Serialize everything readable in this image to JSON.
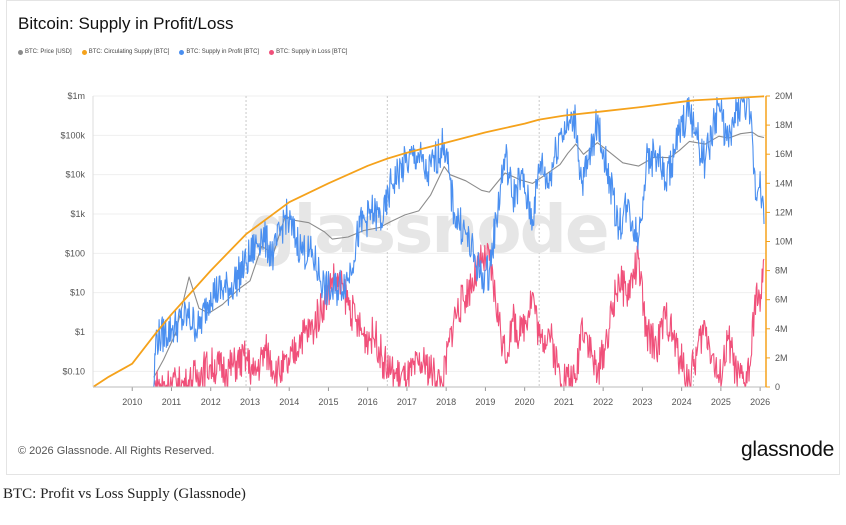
{
  "chart_data": {
    "type": "line",
    "title": "Bitcoin: Supply in Profit/Loss",
    "legend_position": "top-left",
    "grid": true,
    "watermark": "glassnode",
    "xlabel": "",
    "ylabel": "",
    "x_ticks": [
      "2010",
      "2011",
      "2012",
      "2013",
      "2014",
      "2015",
      "2016",
      "2017",
      "2018",
      "2019",
      "2020",
      "2021",
      "2022",
      "2023",
      "2024",
      "2025",
      "2026"
    ],
    "x_range": [
      2009.0,
      2026.15
    ],
    "y_left": {
      "scale": "log",
      "range": [
        0.04,
        1000000
      ],
      "ticks": [
        0.1,
        1,
        10,
        100,
        1000,
        10000,
        100000,
        1000000
      ],
      "tick_labels": [
        "$0.10",
        "$1",
        "$10",
        "$100",
        "$1k",
        "$10k",
        "$100k",
        "$1m"
      ]
    },
    "y_right": {
      "scale": "linear",
      "range": [
        0,
        20000000
      ],
      "ticks": [
        0,
        2000000,
        4000000,
        6000000,
        8000000,
        10000000,
        12000000,
        14000000,
        16000000,
        18000000,
        20000000
      ],
      "tick_labels": [
        "0",
        "2M",
        "4M",
        "6M",
        "8M",
        "10M",
        "12M",
        "14M",
        "16M",
        "18M",
        "20M"
      ]
    },
    "halvings": [
      2012.9,
      2016.5,
      2020.37,
      2024.3
    ],
    "series": [
      {
        "name": "BTC: Price [USD]",
        "color": "#8c8c8c",
        "axis": "left",
        "points": [
          [
            2010.55,
            0.07
          ],
          [
            2010.8,
            0.2
          ],
          [
            2011.1,
            0.9
          ],
          [
            2011.45,
            25
          ],
          [
            2011.7,
            4
          ],
          [
            2011.95,
            3
          ],
          [
            2012.3,
            5
          ],
          [
            2012.7,
            12
          ],
          [
            2013.0,
            20
          ],
          [
            2013.3,
            150
          ],
          [
            2013.6,
            100
          ],
          [
            2013.9,
            900
          ],
          [
            2014.1,
            700
          ],
          [
            2014.5,
            600
          ],
          [
            2014.9,
            350
          ],
          [
            2015.1,
            230
          ],
          [
            2015.5,
            260
          ],
          [
            2015.9,
            380
          ],
          [
            2016.3,
            450
          ],
          [
            2016.6,
            650
          ],
          [
            2016.95,
            950
          ],
          [
            2017.3,
            1200
          ],
          [
            2017.6,
            3000
          ],
          [
            2017.95,
            16000
          ],
          [
            2018.1,
            10000
          ],
          [
            2018.5,
            7000
          ],
          [
            2018.9,
            4000
          ],
          [
            2019.1,
            3600
          ],
          [
            2019.5,
            11000
          ],
          [
            2019.9,
            7300
          ],
          [
            2020.2,
            6000
          ],
          [
            2020.5,
            9500
          ],
          [
            2020.9,
            18000
          ],
          [
            2021.1,
            35000
          ],
          [
            2021.3,
            60000
          ],
          [
            2021.5,
            33000
          ],
          [
            2021.85,
            65000
          ],
          [
            2022.1,
            42000
          ],
          [
            2022.5,
            20000
          ],
          [
            2022.9,
            16500
          ],
          [
            2023.3,
            28000
          ],
          [
            2023.7,
            27000
          ],
          [
            2023.95,
            42000
          ],
          [
            2024.2,
            70000
          ],
          [
            2024.6,
            60000
          ],
          [
            2024.95,
            95000
          ],
          [
            2025.2,
            85000
          ],
          [
            2025.5,
            110000
          ],
          [
            2025.8,
            120000
          ],
          [
            2025.95,
            95000
          ],
          [
            2026.1,
            88000
          ]
        ]
      },
      {
        "name": "BTC: Circulating Supply [BTC]",
        "color": "#f5a21b",
        "axis": "right",
        "points": [
          [
            2009.0,
            0
          ],
          [
            2009.4,
            700000
          ],
          [
            2010.0,
            1600000
          ],
          [
            2010.6,
            3700000
          ],
          [
            2011.0,
            5000000
          ],
          [
            2012.0,
            8000000
          ],
          [
            2012.9,
            10500000
          ],
          [
            2014.0,
            12700000
          ],
          [
            2015.0,
            14000000
          ],
          [
            2016.0,
            15200000
          ],
          [
            2016.5,
            15700000
          ],
          [
            2017.0,
            16100000
          ],
          [
            2018.0,
            16800000
          ],
          [
            2019.0,
            17500000
          ],
          [
            2020.0,
            18100000
          ],
          [
            2020.37,
            18380000
          ],
          [
            2021.0,
            18650000
          ],
          [
            2022.0,
            18950000
          ],
          [
            2023.0,
            19250000
          ],
          [
            2024.0,
            19600000
          ],
          [
            2024.3,
            19700000
          ],
          [
            2025.0,
            19800000
          ],
          [
            2026.1,
            19980000
          ]
        ]
      },
      {
        "name": "BTC: Supply in Profit [BTC]",
        "color": "#4a8ff0",
        "axis": "right",
        "points": [
          [
            2010.55,
            0
          ],
          [
            2010.6,
            3300000
          ],
          [
            2011.0,
            4000000
          ],
          [
            2011.4,
            4900000
          ],
          [
            2011.7,
            4000000
          ],
          [
            2012.0,
            6500000
          ],
          [
            2012.5,
            6800000
          ],
          [
            2012.9,
            8500000
          ],
          [
            2013.3,
            10500000
          ],
          [
            2013.6,
            9000000
          ],
          [
            2013.9,
            11800000
          ],
          [
            2014.3,
            9500000
          ],
          [
            2014.6,
            9000000
          ],
          [
            2014.9,
            6800000
          ],
          [
            2015.1,
            6500000
          ],
          [
            2015.5,
            7500000
          ],
          [
            2015.8,
            11000000
          ],
          [
            2016.1,
            12000000
          ],
          [
            2016.4,
            11500000
          ],
          [
            2016.6,
            14000000
          ],
          [
            2017.0,
            15500000
          ],
          [
            2017.3,
            16000000
          ],
          [
            2017.5,
            14500000
          ],
          [
            2017.95,
            16800000
          ],
          [
            2018.2,
            12000000
          ],
          [
            2018.5,
            10500000
          ],
          [
            2018.9,
            7500000
          ],
          [
            2019.1,
            8000000
          ],
          [
            2019.5,
            16000000
          ],
          [
            2019.7,
            13000000
          ],
          [
            2019.9,
            14500000
          ],
          [
            2020.2,
            11500000
          ],
          [
            2020.4,
            15500000
          ],
          [
            2020.6,
            14000000
          ],
          [
            2020.9,
            17500000
          ],
          [
            2021.1,
            18000000
          ],
          [
            2021.3,
            18300000
          ],
          [
            2021.45,
            14000000
          ],
          [
            2021.6,
            15000000
          ],
          [
            2021.85,
            18200000
          ],
          [
            2022.1,
            15000000
          ],
          [
            2022.4,
            11000000
          ],
          [
            2022.6,
            12500000
          ],
          [
            2022.9,
            10200000
          ],
          [
            2023.1,
            15500000
          ],
          [
            2023.4,
            16000000
          ],
          [
            2023.6,
            14000000
          ],
          [
            2023.95,
            17500000
          ],
          [
            2024.2,
            19200000
          ],
          [
            2024.4,
            17000000
          ],
          [
            2024.6,
            15500000
          ],
          [
            2024.95,
            19500000
          ],
          [
            2025.2,
            16500000
          ],
          [
            2025.4,
            19000000
          ],
          [
            2025.6,
            19700000
          ],
          [
            2025.75,
            18500000
          ],
          [
            2025.9,
            13000000
          ],
          [
            2026.0,
            14800000
          ],
          [
            2026.1,
            11200000
          ]
        ]
      },
      {
        "name": "BTC: Supply in Loss [BTC]",
        "color": "#f0507a",
        "axis": "right",
        "points": [
          [
            2010.55,
            0
          ],
          [
            2011.0,
            200000
          ],
          [
            2011.4,
            100000
          ],
          [
            2011.7,
            1000000
          ],
          [
            2012.0,
            1500000
          ],
          [
            2012.4,
            1200000
          ],
          [
            2012.9,
            2000000
          ],
          [
            2013.1,
            800000
          ],
          [
            2013.4,
            2500000
          ],
          [
            2013.7,
            1000000
          ],
          [
            2014.0,
            1500000
          ],
          [
            2014.3,
            3500000
          ],
          [
            2014.6,
            4000000
          ],
          [
            2014.9,
            6000000
          ],
          [
            2015.1,
            7500000
          ],
          [
            2015.4,
            6500000
          ],
          [
            2015.7,
            4500000
          ],
          [
            2015.9,
            3500000
          ],
          [
            2016.2,
            3500000
          ],
          [
            2016.4,
            1700000
          ],
          [
            2016.6,
            1000000
          ],
          [
            2017.0,
            500000
          ],
          [
            2017.3,
            1500000
          ],
          [
            2017.5,
            1500000
          ],
          [
            2017.9,
            200000
          ],
          [
            2018.2,
            4800000
          ],
          [
            2018.5,
            6300000
          ],
          [
            2018.9,
            8600000
          ],
          [
            2019.1,
            8700000
          ],
          [
            2019.5,
            2000000
          ],
          [
            2019.7,
            4500000
          ],
          [
            2019.9,
            3500000
          ],
          [
            2020.2,
            6500000
          ],
          [
            2020.4,
            3000000
          ],
          [
            2020.6,
            4000000
          ],
          [
            2020.9,
            800000
          ],
          [
            2021.1,
            700000
          ],
          [
            2021.3,
            300000
          ],
          [
            2021.45,
            4500000
          ],
          [
            2021.6,
            3500000
          ],
          [
            2021.85,
            700000
          ],
          [
            2022.1,
            3500000
          ],
          [
            2022.4,
            7500000
          ],
          [
            2022.6,
            6300000
          ],
          [
            2022.9,
            8800000
          ],
          [
            2023.1,
            3500000
          ],
          [
            2023.4,
            3000000
          ],
          [
            2023.6,
            5000000
          ],
          [
            2023.95,
            2000000
          ],
          [
            2024.2,
            400000
          ],
          [
            2024.4,
            2500000
          ],
          [
            2024.6,
            4200000
          ],
          [
            2024.95,
            300000
          ],
          [
            2025.2,
            3300000
          ],
          [
            2025.4,
            800000
          ],
          [
            2025.6,
            300000
          ],
          [
            2025.75,
            1500000
          ],
          [
            2025.9,
            6800000
          ],
          [
            2026.0,
            5200000
          ],
          [
            2026.1,
            8800000
          ]
        ]
      }
    ]
  },
  "footer": {
    "copyright": "© 2026 Glassnode. All Rights Reserved.",
    "brand": "glassnode"
  },
  "caption": "BTC: Profit vs Loss Supply (Glassnode)"
}
